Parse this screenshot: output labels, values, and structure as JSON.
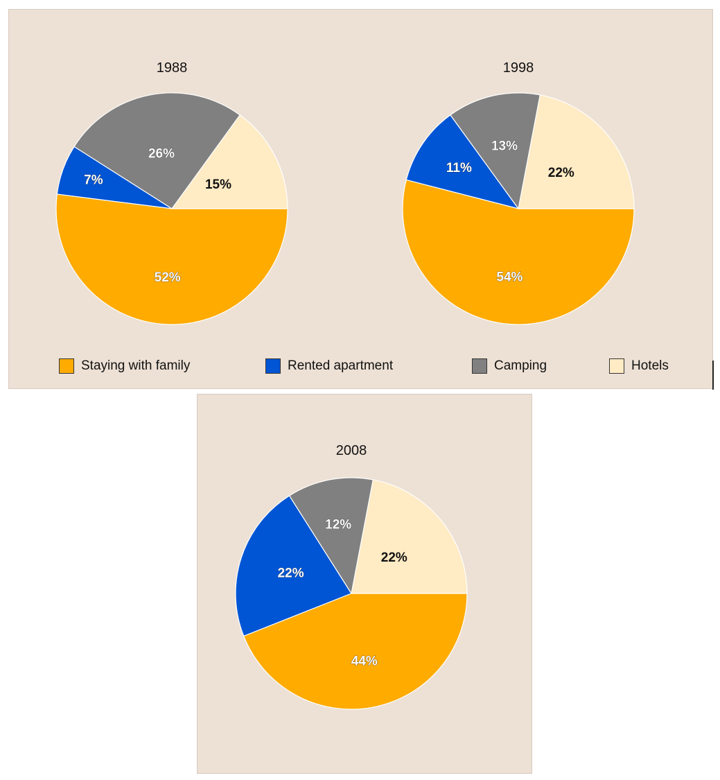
{
  "chart_data": [
    {
      "type": "pie",
      "title": "1988",
      "categories": [
        "Staying with family",
        "Rented apartment",
        "Camping",
        "Hotels"
      ],
      "values": [
        52,
        7,
        26,
        15
      ],
      "labels": [
        "52%",
        "7%",
        "26%",
        "15%"
      ]
    },
    {
      "type": "pie",
      "title": "1998",
      "categories": [
        "Staying with family",
        "Rented apartment",
        "Camping",
        "Hotels"
      ],
      "values": [
        54,
        11,
        13,
        22
      ],
      "labels": [
        "54%",
        "11%",
        "13%",
        "22%"
      ]
    },
    {
      "type": "pie",
      "title": "2008",
      "categories": [
        "Staying with family",
        "Rented apartment",
        "Camping",
        "Hotels"
      ],
      "values": [
        44,
        22,
        12,
        22
      ],
      "labels": [
        "44%",
        "22%",
        "12%",
        "22%"
      ]
    }
  ],
  "legend": {
    "items": [
      {
        "label": "Staying with family",
        "color": "#ffab00"
      },
      {
        "label": "Rented apartment",
        "color": "#0055d4"
      },
      {
        "label": "Camping",
        "color": "#808080"
      },
      {
        "label": "Hotels",
        "color": "#ffebc4"
      }
    ]
  },
  "colors": {
    "Staying with family": "#ffab00",
    "Rented apartment": "#0055d4",
    "Camping": "#808080",
    "Hotels": "#ffebc4",
    "panel_background": "#ede1d5"
  }
}
